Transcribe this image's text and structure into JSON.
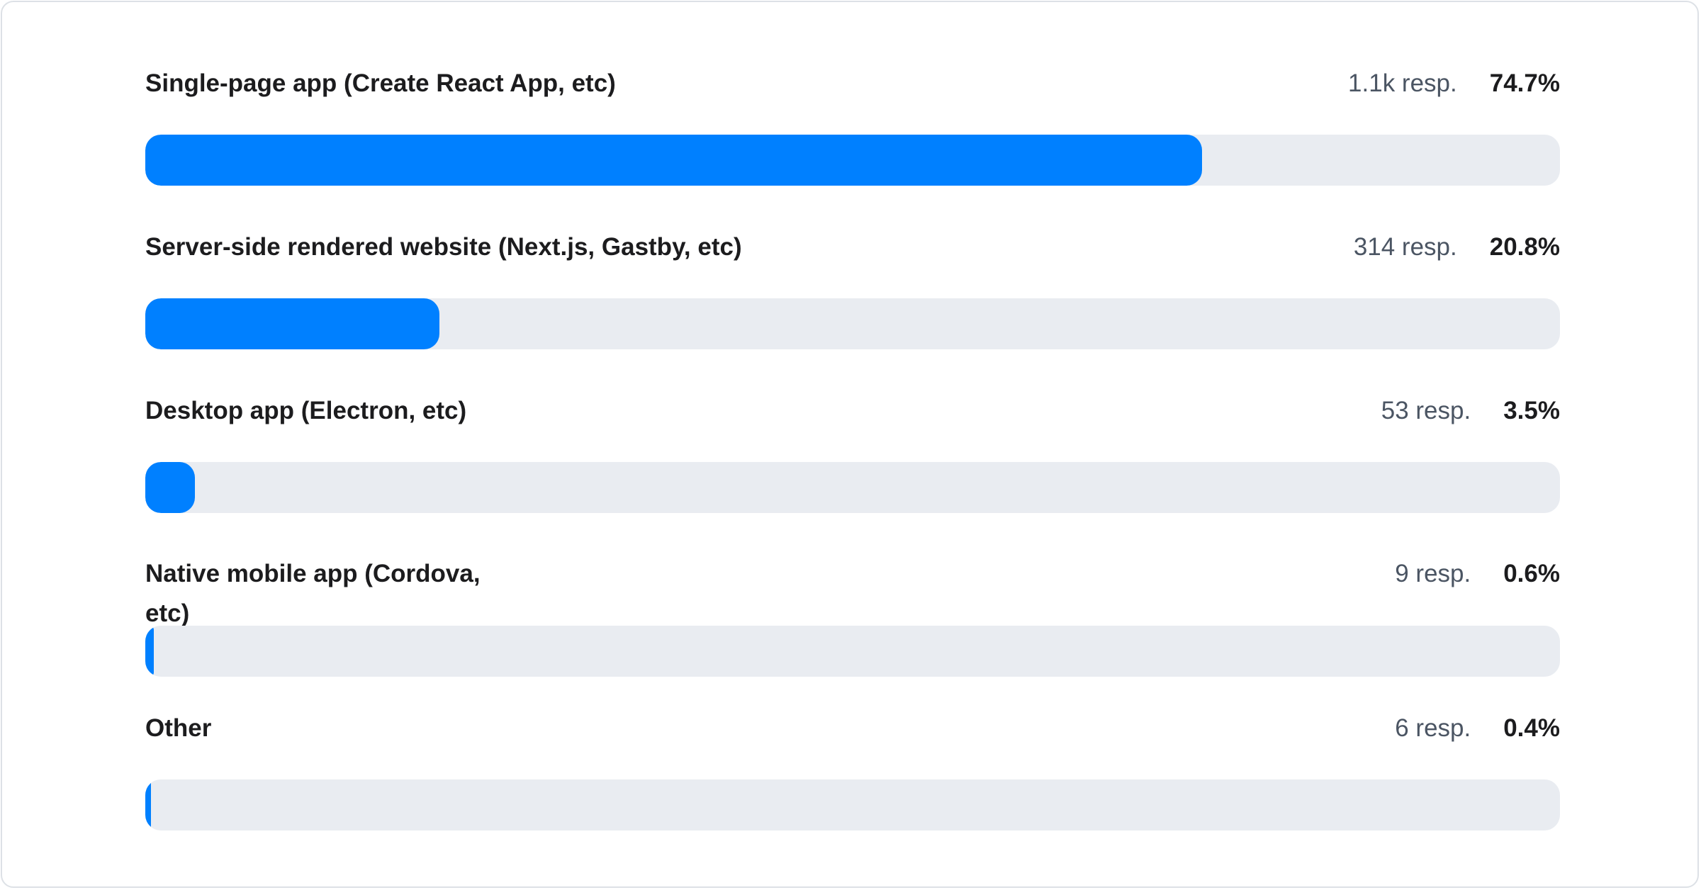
{
  "chart_data": {
    "type": "bar",
    "orientation": "horizontal",
    "categories": [
      "Single-page app (Create React App, etc)",
      "Server-side rendered website (Next.js, Gastby, etc)",
      "Desktop app (Electron, etc)",
      "Native mobile app (Cordova, etc)",
      "Other"
    ],
    "responses": [
      "1.1k resp.",
      "314 resp.",
      "53 resp.",
      "9 resp.",
      "6 resp."
    ],
    "percent_labels": [
      "74.7%",
      "20.8%",
      "3.5%",
      "0.6%",
      "0.4%"
    ],
    "values": [
      74.7,
      20.8,
      3.5,
      0.6,
      0.4
    ],
    "xlim": [
      0,
      100
    ],
    "colors": {
      "fill": "#0080ff",
      "track": "#e9ecf1"
    }
  }
}
